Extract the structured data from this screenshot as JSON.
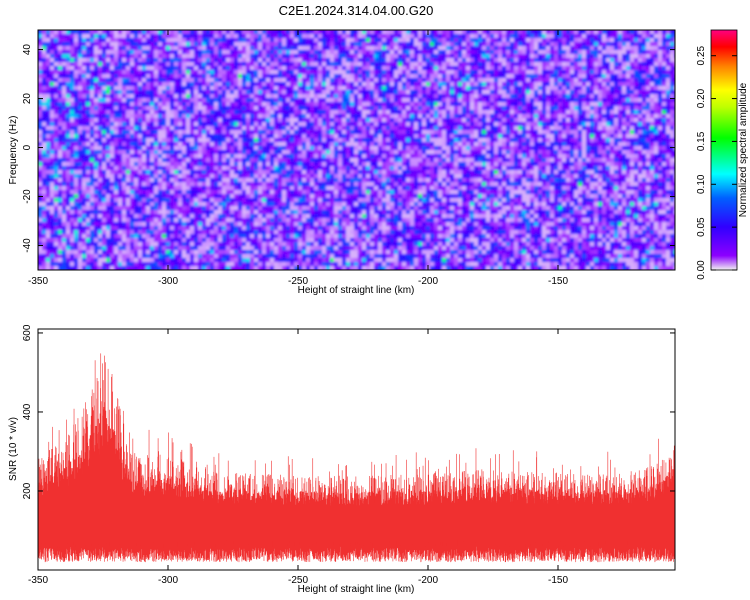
{
  "title": "C2E1.2024.314.04.00.G20",
  "chart_data": [
    {
      "type": "heatmap",
      "xlabel": "Height of straight line (km)",
      "ylabel": "Frequency (Hz)",
      "xlim": [
        -350,
        -105
      ],
      "ylim": [
        -50,
        48
      ],
      "xticks": [
        -350,
        -300,
        -250,
        -200,
        -150
      ],
      "yticks": [
        -40,
        -20,
        0,
        20,
        40
      ],
      "colorbar": {
        "label": "Normalized spectral amplitude",
        "range": [
          0,
          0.28
        ],
        "ticks": [
          "0.00",
          "0.05",
          "0.10",
          "0.15",
          "0.20",
          "0.25"
        ],
        "colors": [
          "#f2f2f2",
          "#5000ff",
          "#0040ff",
          "#00ffff",
          "#00ff00",
          "#ffff00",
          "#ff8000",
          "#ff0000",
          "#ff0080"
        ]
      }
    },
    {
      "type": "line",
      "xlabel": "Height of straight line (km)",
      "ylabel": "SNR (10 * v/v)",
      "xlim": [
        -350,
        -105
      ],
      "ylim": [
        0,
        610
      ],
      "xticks": [
        -350,
        -300,
        -250,
        -200,
        -150
      ],
      "yticks": [
        200,
        400,
        600
      ],
      "color": "#f03030",
      "profile_x": [
        -350,
        -340,
        -330,
        -325,
        -320,
        -315,
        -300,
        -280,
        -260,
        -240,
        -220,
        -200,
        -180,
        -160,
        -140,
        -120,
        -110,
        -105
      ],
      "profile_y": [
        290,
        330,
        450,
        560,
        470,
        300,
        290,
        250,
        245,
        240,
        240,
        245,
        255,
        250,
        245,
        250,
        280,
        330
      ]
    }
  ]
}
